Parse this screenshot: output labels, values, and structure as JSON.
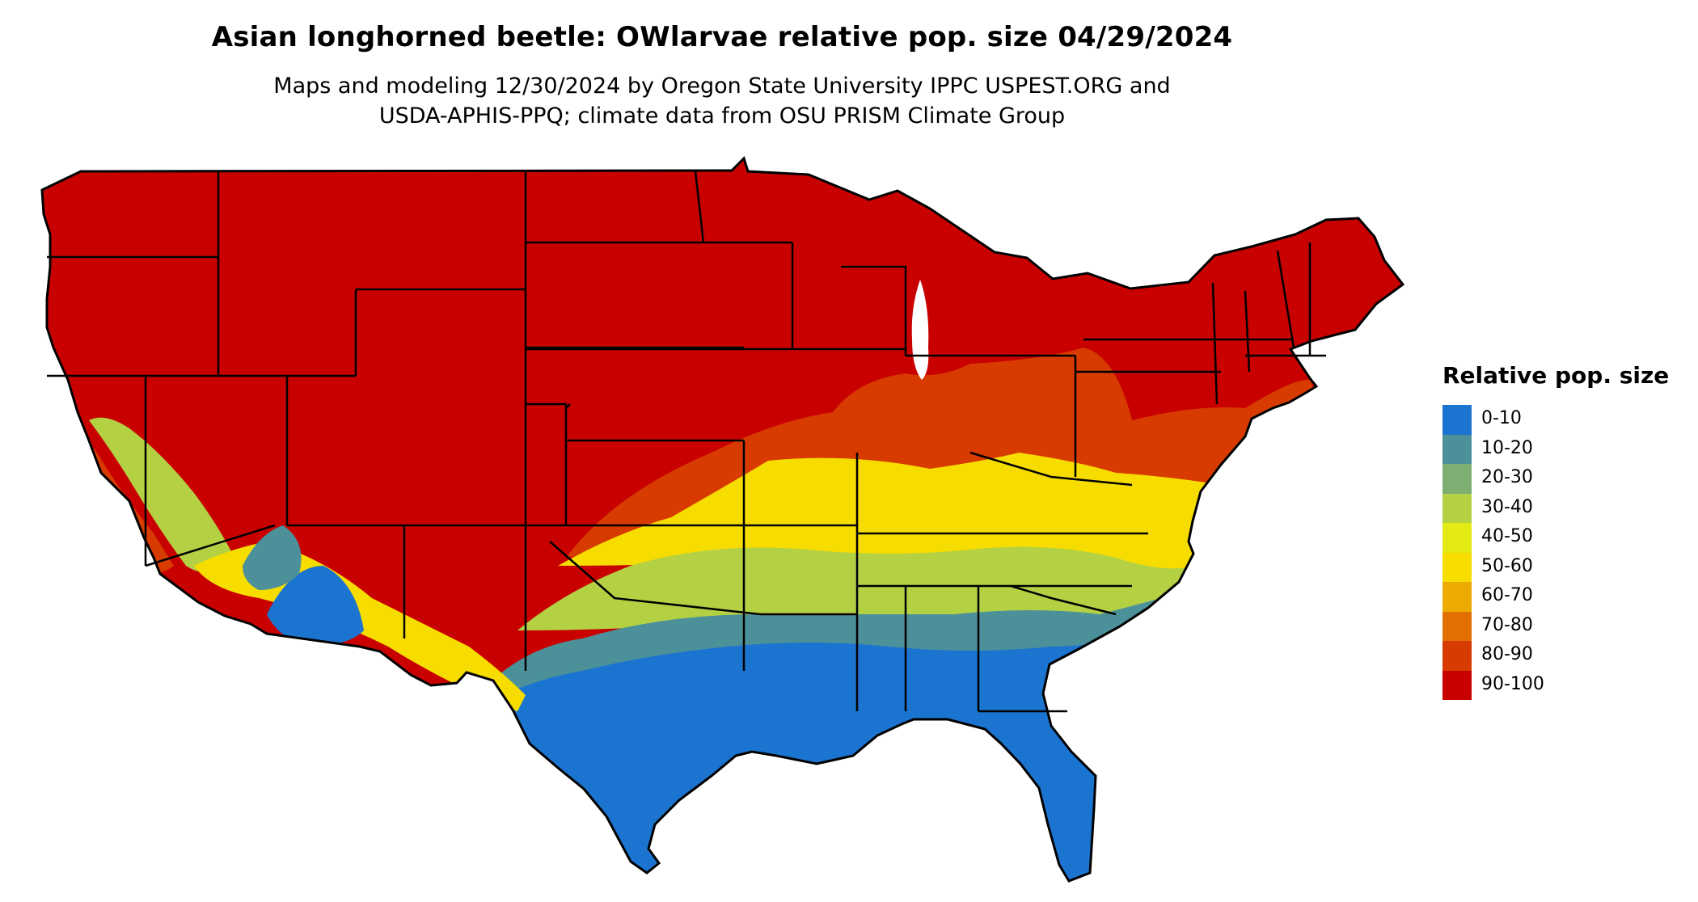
{
  "title": "Asian longhorned beetle: OWlarvae relative pop. size 04/29/2024",
  "subtitle_lines": [
    "Maps and modeling 12/30/2024 by Oregon State University IPPC USPEST.ORG and",
    "USDA-APHIS-PPQ; climate data from OSU PRISM Climate Group"
  ],
  "legend": {
    "title": "Relative pop. size",
    "items": [
      {
        "label": "0-10",
        "color": "#1b74d0"
      },
      {
        "label": "10-20",
        "color": "#4c9199"
      },
      {
        "label": "20-30",
        "color": "#7fae73"
      },
      {
        "label": "30-40",
        "color": "#b4d144"
      },
      {
        "label": "40-50",
        "color": "#e3ea14"
      },
      {
        "label": "50-60",
        "color": "#f7dc00"
      },
      {
        "label": "60-70",
        "color": "#edaa00"
      },
      {
        "label": "70-80",
        "color": "#e27000"
      },
      {
        "label": "80-90",
        "color": "#d73b00"
      },
      {
        "label": "90-100",
        "color": "#c90000"
      }
    ]
  },
  "map": {
    "region": "Contiguous United States",
    "state_borders": true
  }
}
